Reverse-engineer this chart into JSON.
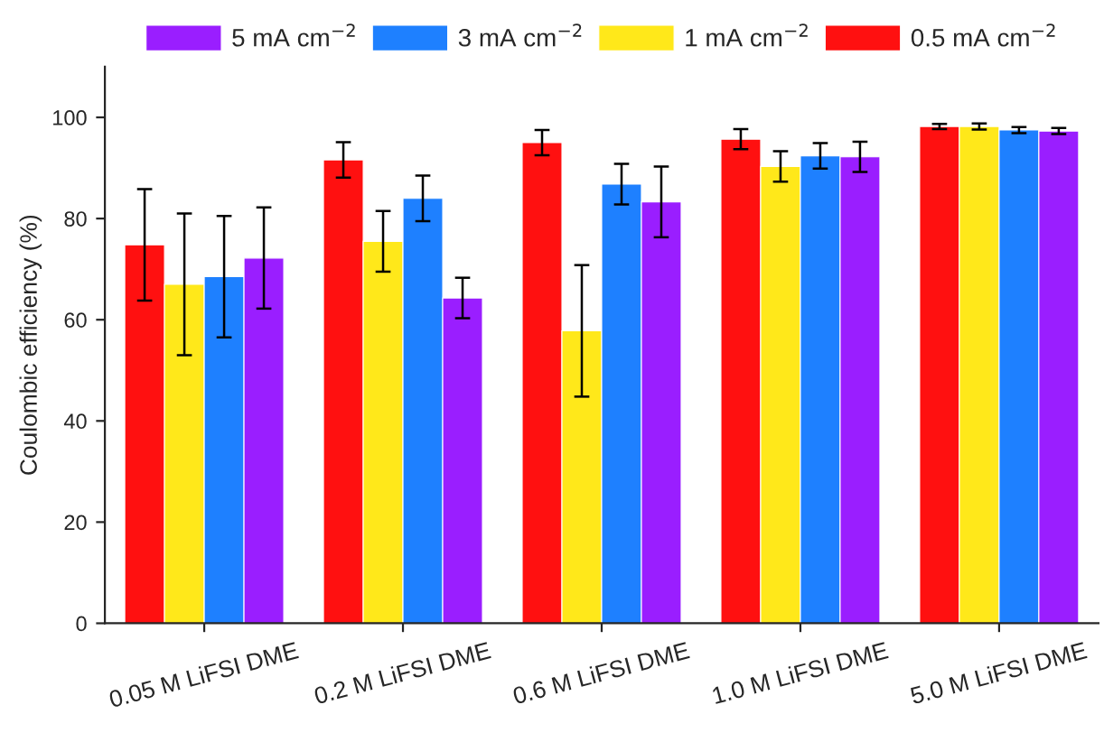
{
  "chart_data": {
    "type": "bar",
    "ylabel": "Coulombic efficiency (%)",
    "categories": [
      "0.05 M LiFSI DME",
      "0.2 M LiFSI DME",
      "0.6 M LiFSI DME",
      "1.0 M LiFSI DME",
      "5.0 M LiFSI DME"
    ],
    "series": [
      {
        "name": "0.5 mA cm$^{−2}$",
        "color": "#ff1010",
        "values": [
          74.8,
          91.6,
          95.0,
          95.7,
          98.2
        ],
        "errors": [
          11,
          3.5,
          2.5,
          2,
          0.5
        ]
      },
      {
        "name": "1 mA cm$^{−2}$",
        "color": "#ffe81a",
        "values": [
          67.0,
          75.5,
          57.8,
          90.3,
          98.2
        ],
        "errors": [
          14,
          6,
          13,
          3,
          0.6
        ]
      },
      {
        "name": "3 mA cm$^{−2}$",
        "color": "#1e80ff",
        "values": [
          68.5,
          84.0,
          86.8,
          92.4,
          97.5
        ],
        "errors": [
          12,
          4.5,
          4,
          2.5,
          0.6
        ]
      },
      {
        "name": "5 mA cm$^{−2}$",
        "color": "#9a1eff",
        "values": [
          72.2,
          64.3,
          83.3,
          92.2,
          97.3
        ],
        "errors": [
          10,
          4,
          7,
          3,
          0.6
        ]
      }
    ],
    "ylim": [
      0,
      110
    ],
    "yticks": [
      0,
      20,
      40,
      60,
      80,
      100
    ],
    "grid": false,
    "legend": "top"
  }
}
